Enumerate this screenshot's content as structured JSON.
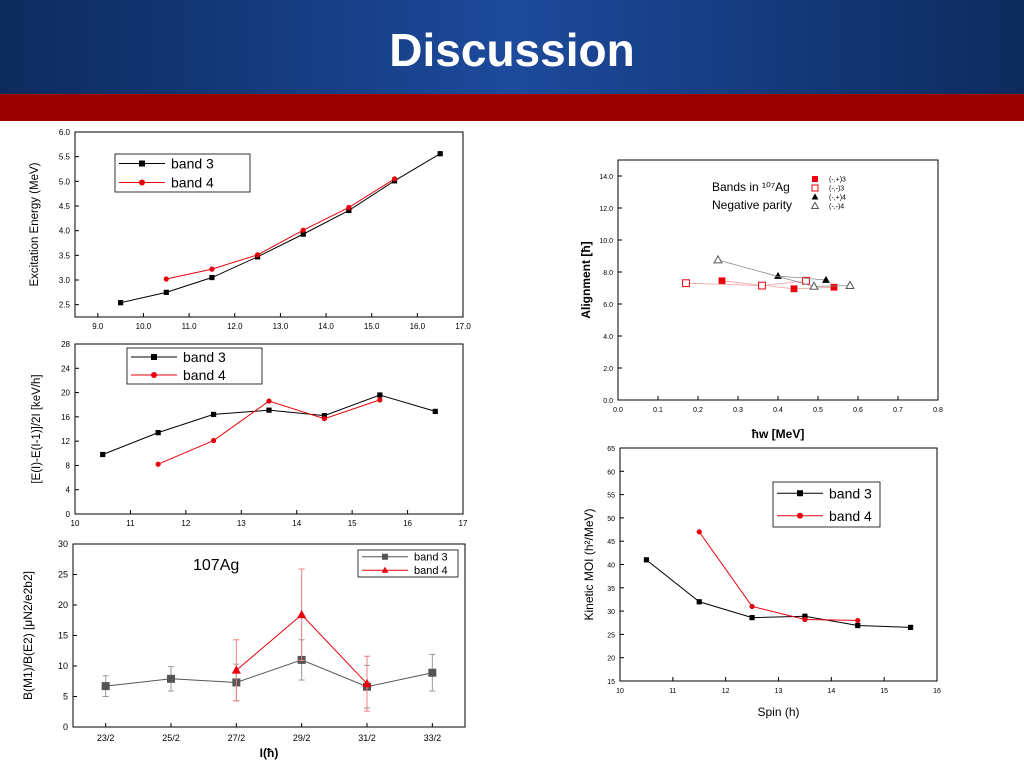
{
  "slide": {
    "title": "Discussion",
    "colors": {
      "header": "#1d4a9c",
      "bar": "#9b0000"
    }
  },
  "chart_data": [
    {
      "id": "excitation",
      "type": "line",
      "title": "",
      "xlabel": "",
      "ylabel": "Excitation Energy (MeV)",
      "xlim": [
        8.5,
        17
      ],
      "ylim": [
        2.25,
        6.0
      ],
      "xticks": [
        9,
        10,
        11,
        12,
        13,
        14,
        15,
        16,
        17
      ],
      "yticks": [
        2.5,
        3.0,
        3.5,
        4.0,
        4.5,
        5.0,
        5.5,
        6.0
      ],
      "legend": "top-left",
      "series": [
        {
          "name": "band 3",
          "color": "#000000",
          "marker": "square",
          "x": [
            9.5,
            10.5,
            11.5,
            12.5,
            13.5,
            14.5,
            15.5,
            16.5
          ],
          "y": [
            2.54,
            2.75,
            3.05,
            3.47,
            3.93,
            4.41,
            5.01,
            5.56
          ]
        },
        {
          "name": "band 4",
          "color": "#e8000b",
          "marker": "circle",
          "x": [
            10.5,
            11.5,
            12.5,
            13.5,
            14.5,
            15.5
          ],
          "y": [
            3.02,
            3.22,
            3.51,
            4.01,
            4.47,
            5.05
          ]
        }
      ]
    },
    {
      "id": "energy-diff",
      "type": "line",
      "title": "",
      "xlabel": "",
      "ylabel": "[E(I)-E(I-1)]/2I [keV/h]",
      "xlim": [
        10,
        17
      ],
      "ylim": [
        0,
        28
      ],
      "xticks": [
        10,
        11,
        12,
        13,
        14,
        15,
        16,
        17
      ],
      "yticks": [
        0,
        4,
        8,
        12,
        16,
        20,
        24,
        28
      ],
      "legend": "top-left",
      "series": [
        {
          "name": "band 3",
          "color": "#000000",
          "marker": "square",
          "x": [
            10.5,
            11.5,
            12.5,
            13.5,
            14.5,
            15.5,
            16.5
          ],
          "y": [
            9.8,
            13.4,
            16.4,
            17.1,
            16.2,
            19.6,
            16.9
          ]
        },
        {
          "name": "band 4",
          "color": "#e8000b",
          "marker": "circle",
          "x": [
            11.5,
            12.5,
            13.5,
            14.5,
            15.5
          ],
          "y": [
            8.2,
            12.1,
            18.6,
            15.7,
            18.8
          ]
        }
      ]
    },
    {
      "id": "bm1be2",
      "type": "line",
      "title": "",
      "annotation": "107Ag",
      "xlabel": "I(ħ)",
      "ylabel": "B(M1)/B(E2) [μN2/e2b2]",
      "xlim": [
        0.5,
        6.5
      ],
      "ylim": [
        0,
        30
      ],
      "xticks": [
        "23/2",
        "25/2",
        "27/2",
        "29/2",
        "31/2",
        "33/2"
      ],
      "yticks": [
        0,
        5,
        10,
        15,
        20,
        25,
        30
      ],
      "legend": "top-right",
      "series": [
        {
          "name": "band 3",
          "color": "#555555",
          "marker": "square",
          "x": [
            1,
            2,
            3,
            4,
            5,
            6
          ],
          "y": [
            6.7,
            7.9,
            7.3,
            11.0,
            6.6,
            8.9
          ],
          "err": [
            1.7,
            2.0,
            3.0,
            3.3,
            3.5,
            3.0
          ]
        },
        {
          "name": "band 4",
          "color": "#e8000b",
          "marker": "triangle",
          "x": [
            3,
            4,
            5
          ],
          "y": [
            9.3,
            18.4,
            7.1
          ],
          "err": [
            5.0,
            7.5,
            4.5
          ]
        }
      ]
    },
    {
      "id": "alignment",
      "type": "scatter",
      "title": "",
      "legend_title": "Bands in ¹⁰⁷Ag",
      "legend_subtitle": "Negative parity",
      "xlabel": "ħw  [MeV]",
      "ylabel": "Alignment [ħ]",
      "xlim": [
        0.0,
        0.8
      ],
      "ylim": [
        0,
        15
      ],
      "xticks": [
        0.0,
        0.1,
        0.2,
        0.3,
        0.4,
        0.5,
        0.6,
        0.7,
        0.8
      ],
      "yticks": [
        0,
        2,
        4,
        6,
        8,
        10,
        12,
        14
      ],
      "legend": "top-right",
      "series": [
        {
          "name": "(-,+)3",
          "color": "#e8000b",
          "marker": "square",
          "x": [
            0.26,
            0.44,
            0.54
          ],
          "y": [
            7.45,
            6.95,
            7.05
          ]
        },
        {
          "name": "(-,-)3",
          "color": "#e8000b",
          "marker": "square-open",
          "x": [
            0.17,
            0.36,
            0.47
          ],
          "y": [
            7.3,
            7.15,
            7.45
          ]
        },
        {
          "name": "(-,+)4",
          "color": "#000000",
          "marker": "triangle",
          "x": [
            0.4,
            0.52
          ],
          "y": [
            7.75,
            7.5
          ]
        },
        {
          "name": "(-,-)4",
          "color": "#555555",
          "marker": "triangle-open",
          "x": [
            0.25,
            0.49,
            0.58
          ],
          "y": [
            8.75,
            7.1,
            7.15
          ]
        }
      ]
    },
    {
      "id": "kinetic-moi",
      "type": "line",
      "title": "",
      "xlabel": "Spin (h)",
      "ylabel": "Kinetic MOI (h²/MeV)",
      "xlim": [
        10,
        16
      ],
      "ylim": [
        15,
        65
      ],
      "xticks": [
        10,
        11,
        12,
        13,
        14,
        15,
        16
      ],
      "yticks": [
        15,
        20,
        25,
        30,
        35,
        40,
        45,
        50,
        55,
        60,
        65
      ],
      "legend": "top-right",
      "series": [
        {
          "name": "band 3",
          "color": "#000000",
          "marker": "square",
          "x": [
            10.5,
            11.5,
            12.5,
            13.5,
            14.5,
            15.5
          ],
          "y": [
            41.0,
            32.0,
            28.6,
            28.9,
            26.9,
            26.5
          ]
        },
        {
          "name": "band 4",
          "color": "#e8000b",
          "marker": "circle",
          "x": [
            11.5,
            12.5,
            13.5,
            14.5
          ],
          "y": [
            47.0,
            31.0,
            28.2,
            28.0
          ]
        }
      ]
    }
  ]
}
